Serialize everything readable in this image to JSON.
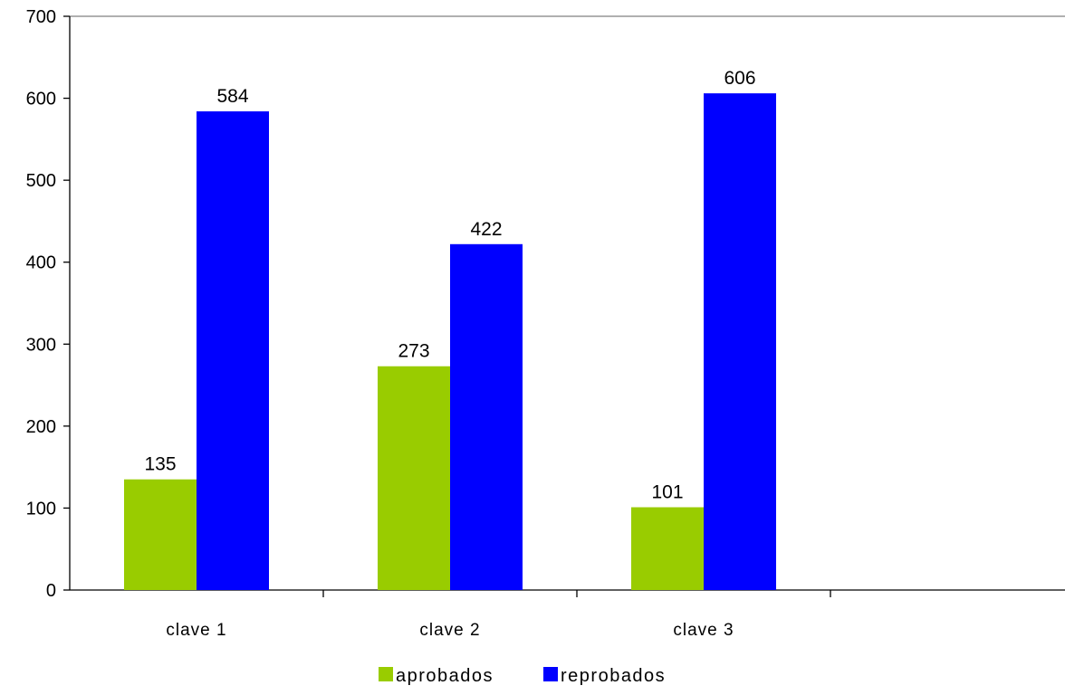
{
  "chart_data": {
    "type": "bar",
    "categories": [
      "clave 1",
      "clave 2",
      "clave 3",
      ""
    ],
    "series": [
      {
        "name": "aprobados",
        "values": [
          135,
          273,
          101,
          null
        ],
        "color": "#99cc00"
      },
      {
        "name": "reprobados",
        "values": [
          584,
          422,
          606,
          null
        ],
        "color": "#0000ff"
      }
    ],
    "ylim": [
      0,
      700
    ],
    "yticks": [
      0,
      100,
      200,
      300,
      400,
      500,
      600,
      700
    ],
    "title": "",
    "xlabel": "",
    "ylabel": "",
    "grid": false,
    "data_labels": true,
    "legend_position": "bottom",
    "axis_color": "#808080"
  }
}
